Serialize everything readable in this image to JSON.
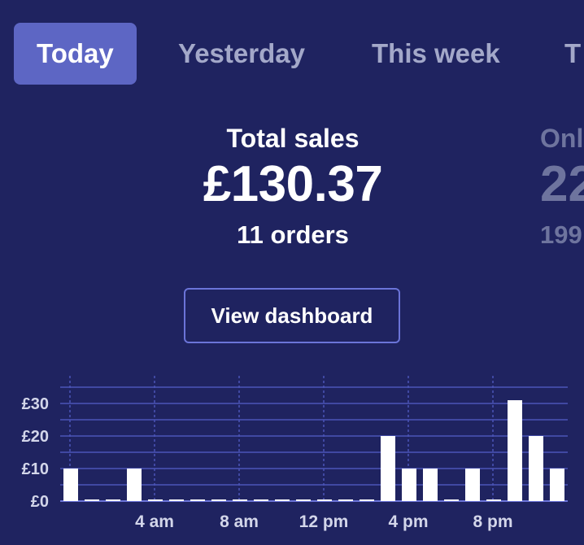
{
  "tabs": [
    "Today",
    "Yesterday",
    "This week",
    "T"
  ],
  "summary": {
    "label": "Total sales",
    "amount": "£130.37",
    "orders": "11 orders",
    "button": "View dashboard"
  },
  "summary_partial": {
    "label": "Onl",
    "amount": "22",
    "orders": "199"
  },
  "colors": {
    "background": "#1f2360",
    "active_tab": "#5d66c4",
    "bar": "#ffffff",
    "grid": "#4b54b8"
  },
  "chart_data": {
    "type": "bar",
    "x": [
      0,
      1,
      2,
      3,
      4,
      5,
      6,
      7,
      8,
      9,
      10,
      11,
      12,
      13,
      14,
      15,
      16,
      17,
      18,
      19,
      20,
      21,
      22,
      23
    ],
    "values": [
      10,
      0,
      0,
      10,
      0,
      0,
      0,
      0,
      0,
      0,
      0,
      0,
      0,
      0,
      0,
      20,
      10,
      10,
      0,
      10,
      0,
      31,
      20,
      10
    ],
    "xtick_labels": [
      "4 am",
      "8 am",
      "12 pm",
      "4 pm",
      "8 pm"
    ],
    "xtick_hours": [
      4,
      8,
      12,
      16,
      20
    ],
    "ytick_labels": [
      "£0",
      "£10",
      "£20",
      "£30"
    ],
    "ytick_values": [
      0,
      10,
      20,
      30
    ],
    "ylim": [
      0,
      35
    ],
    "grid": true
  }
}
